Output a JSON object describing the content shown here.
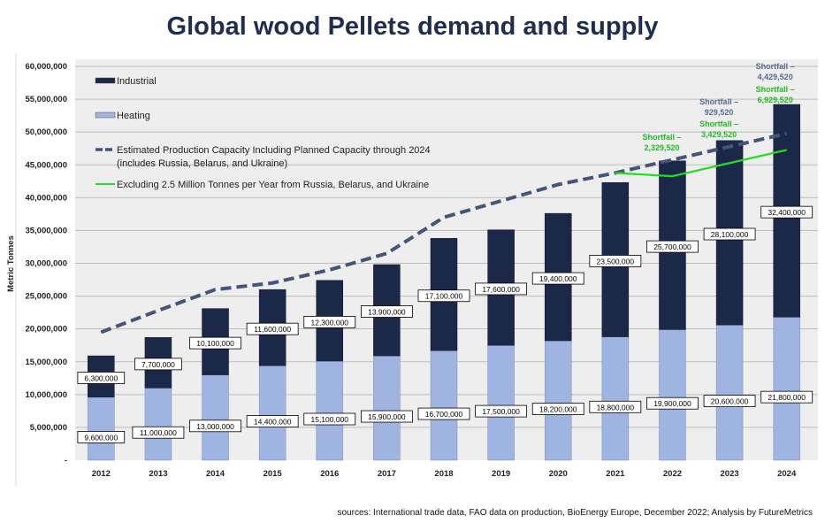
{
  "chart_data": {
    "type": "bar",
    "stacked": true,
    "title": "Global wood Pellets demand and supply",
    "xlabel": "",
    "ylabel": "Metric Tonnes",
    "ylim": [
      0,
      60000000
    ],
    "ytick_step": 5000000,
    "ytick_labels": [
      "-",
      "5,000,000",
      "10,000,000",
      "15,000,000",
      "20,000,000",
      "25,000,000",
      "30,000,000",
      "35,000,000",
      "40,000,000",
      "45,000,000",
      "50,000,000",
      "55,000,000",
      "60,000,000"
    ],
    "grid": true,
    "legend_position": "top-left",
    "categories": [
      "2012",
      "2013",
      "2014",
      "2015",
      "2016",
      "2017",
      "2018",
      "2019",
      "2020",
      "2021",
      "2022",
      "2023",
      "2024"
    ],
    "series": [
      {
        "name": "Heating",
        "kind": "bar",
        "color": "#9fb4e0",
        "values": [
          9600000,
          11000000,
          13000000,
          14400000,
          15100000,
          15900000,
          16700000,
          17500000,
          18200000,
          18800000,
          19900000,
          20600000,
          21800000
        ],
        "labels": [
          "9,600,000",
          "11,000,000",
          "13,000,000",
          "14,400,000",
          "15,100,000",
          "15,900,000",
          "16,700,000",
          "17,500,000",
          "18,200,000",
          "18,800,000",
          "19,900,000",
          "20,600,000",
          "21,800,000"
        ]
      },
      {
        "name": "Industrial",
        "kind": "bar",
        "color": "#1c2847",
        "values": [
          6300000,
          7700000,
          10100000,
          11600000,
          12300000,
          13900000,
          17100000,
          17600000,
          19400000,
          23500000,
          25700000,
          28100000,
          32400000
        ],
        "labels": [
          "6,300,000",
          "7,700,000",
          "10,100,000",
          "11,600,000",
          "12,300,000",
          "13,900,000",
          "17,100,000",
          "17,600,000",
          "19,400,000",
          "23,500,000",
          "25,700,000",
          "28,100,000",
          "32,400,000"
        ]
      },
      {
        "name": "Estimated Production Capacity Including Planned Capacity through 2024",
        "name_line2": "(includes Russia, Belarus, and Ukraine)",
        "kind": "dashed-line",
        "color": "#44557a",
        "values": [
          19500000,
          22800000,
          26000000,
          27000000,
          29000000,
          31500000,
          37000000,
          39500000,
          42000000,
          43770000,
          45770000,
          47770000,
          49770000
        ]
      },
      {
        "name": "Excluding 2.5 Million Tonnes per Year from Russia, Belarus, and Ukraine",
        "kind": "line",
        "color": "#22dd22",
        "values": [
          null,
          null,
          null,
          null,
          null,
          null,
          null,
          null,
          null,
          43770000,
          43270000,
          45270000,
          47270000
        ]
      }
    ],
    "annotations": [
      {
        "category": "2022",
        "line1": "Shortfall –",
        "line2": "2,329,520",
        "color": "#22bb22"
      },
      {
        "category": "2023",
        "line1": "Shortfall –",
        "line2": "929,520",
        "color": "#5a6a8e"
      },
      {
        "category": "2023",
        "line1": "Shortfall –",
        "line2": "3,429,520",
        "color": "#22bb22"
      },
      {
        "category": "2024",
        "line1": "Shortfall –",
        "line2": "4,429,520",
        "color": "#5a6a8e"
      },
      {
        "category": "2024",
        "line1": "Shortfall –",
        "line2": "6,929,520",
        "color": "#22bb22"
      }
    ]
  },
  "source": "sources: International trade data, FAO data on production,  BioEnergy Europe, December 2022; Analysis by FutureMetrics"
}
